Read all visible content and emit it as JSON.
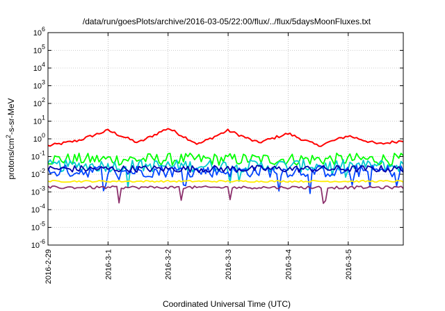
{
  "chart_data": {
    "type": "line",
    "title": "/data/run/goesPlots/archive/2016-03-05/22:00/flux/../flux/5daysMoonFluxes.txt",
    "xlabel": "Coordinated Universal Time (UTC)",
    "ylabel": "protons/cm²-s-sr-MeV",
    "ylabel_parts": {
      "pre": "protons/cm",
      "sup": "2",
      "post": "-s-sr-MeV"
    },
    "y_scale": "log",
    "ylim": [
      1e-06,
      1000000.0
    ],
    "y_ticks": [
      {
        "value": 1e-06,
        "base": "10",
        "exp": "-6"
      },
      {
        "value": 1e-05,
        "base": "10",
        "exp": "-5"
      },
      {
        "value": 0.0001,
        "base": "10",
        "exp": "-4"
      },
      {
        "value": 0.001,
        "base": "10",
        "exp": "-3"
      },
      {
        "value": 0.01,
        "base": "10",
        "exp": "-2"
      },
      {
        "value": 0.1,
        "base": "10",
        "exp": "-1"
      },
      {
        "value": 1,
        "base": "10",
        "exp": "0"
      },
      {
        "value": 10,
        "base": "10",
        "exp": "1"
      },
      {
        "value": 100,
        "base": "10",
        "exp": "2"
      },
      {
        "value": 1000,
        "base": "10",
        "exp": "3"
      },
      {
        "value": 10000,
        "base": "10",
        "exp": "4"
      },
      {
        "value": 100000,
        "base": "10",
        "exp": "5"
      },
      {
        "value": 1000000,
        "base": "10",
        "exp": "6"
      }
    ],
    "xlim": [
      "2016-02-29T00:00",
      "2016-03-05T22:00"
    ],
    "x_ticks": [
      "2016-2-29",
      "2016-3-1",
      "2016-3-2",
      "2016-3-3",
      "2016-3-4",
      "2016-3-5"
    ],
    "grid": true,
    "series": [
      {
        "color": "#ff0000",
        "base": 1.2,
        "swing": 1.2,
        "noise": 0.08,
        "dips": false,
        "x": [
          "2016-02-29T00:00",
          "2016-02-29T12:00",
          "2016-03-01T00:00",
          "2016-03-01T12:00",
          "2016-03-02T00:00",
          "2016-03-02T12:00",
          "2016-03-03T00:00",
          "2016-03-03T12:00",
          "2016-03-04T00:00",
          "2016-03-04T12:00",
          "2016-03-05T00:00",
          "2016-03-05T12:00",
          "2016-03-05T22:00"
        ],
        "y": [
          0.4,
          0.8,
          3.0,
          0.6,
          4.0,
          0.5,
          3.0,
          0.6,
          2.0,
          0.4,
          1.5,
          0.5,
          0.8
        ]
      },
      {
        "color": "#00ff00",
        "base": 0.07,
        "swing": 0,
        "noise": 0.35,
        "dips": false,
        "x": [
          "2016-02-29T00:00",
          "2016-03-05T22:00"
        ],
        "y": [
          0.07,
          0.07
        ]
      },
      {
        "color": "#00cccc",
        "base": 0.03,
        "swing": 0,
        "noise": 0.35,
        "dips": true,
        "x": [
          "2016-02-29T00:00",
          "2016-03-05T22:00"
        ],
        "y": [
          0.03,
          0.03
        ]
      },
      {
        "color": "#0044ff",
        "base": 0.015,
        "swing": 0,
        "noise": 0.35,
        "dips": true,
        "x": [
          "2016-02-29T00:00",
          "2016-03-05T22:00"
        ],
        "y": [
          0.015,
          0.015
        ]
      },
      {
        "color": "#0000aa",
        "base": 0.02,
        "swing": 0,
        "noise": 0.2,
        "dips": false,
        "x": [
          "2016-02-29T00:00",
          "2016-03-05T22:00"
        ],
        "y": [
          0.02,
          0.02
        ]
      },
      {
        "color": "#ffee00",
        "base": 0.004,
        "swing": 0,
        "noise": 0.05,
        "dips": false,
        "x": [
          "2016-02-29T00:00",
          "2016-03-05T22:00"
        ],
        "y": [
          0.004,
          0.004
        ]
      },
      {
        "color": "#8b2f6b",
        "base": 0.0018,
        "swing": 0,
        "noise": 0.08,
        "dips": true,
        "x": [
          "2016-02-29T00:00",
          "2016-03-05T22:00"
        ],
        "y": [
          0.0018,
          0.0018
        ]
      }
    ]
  }
}
